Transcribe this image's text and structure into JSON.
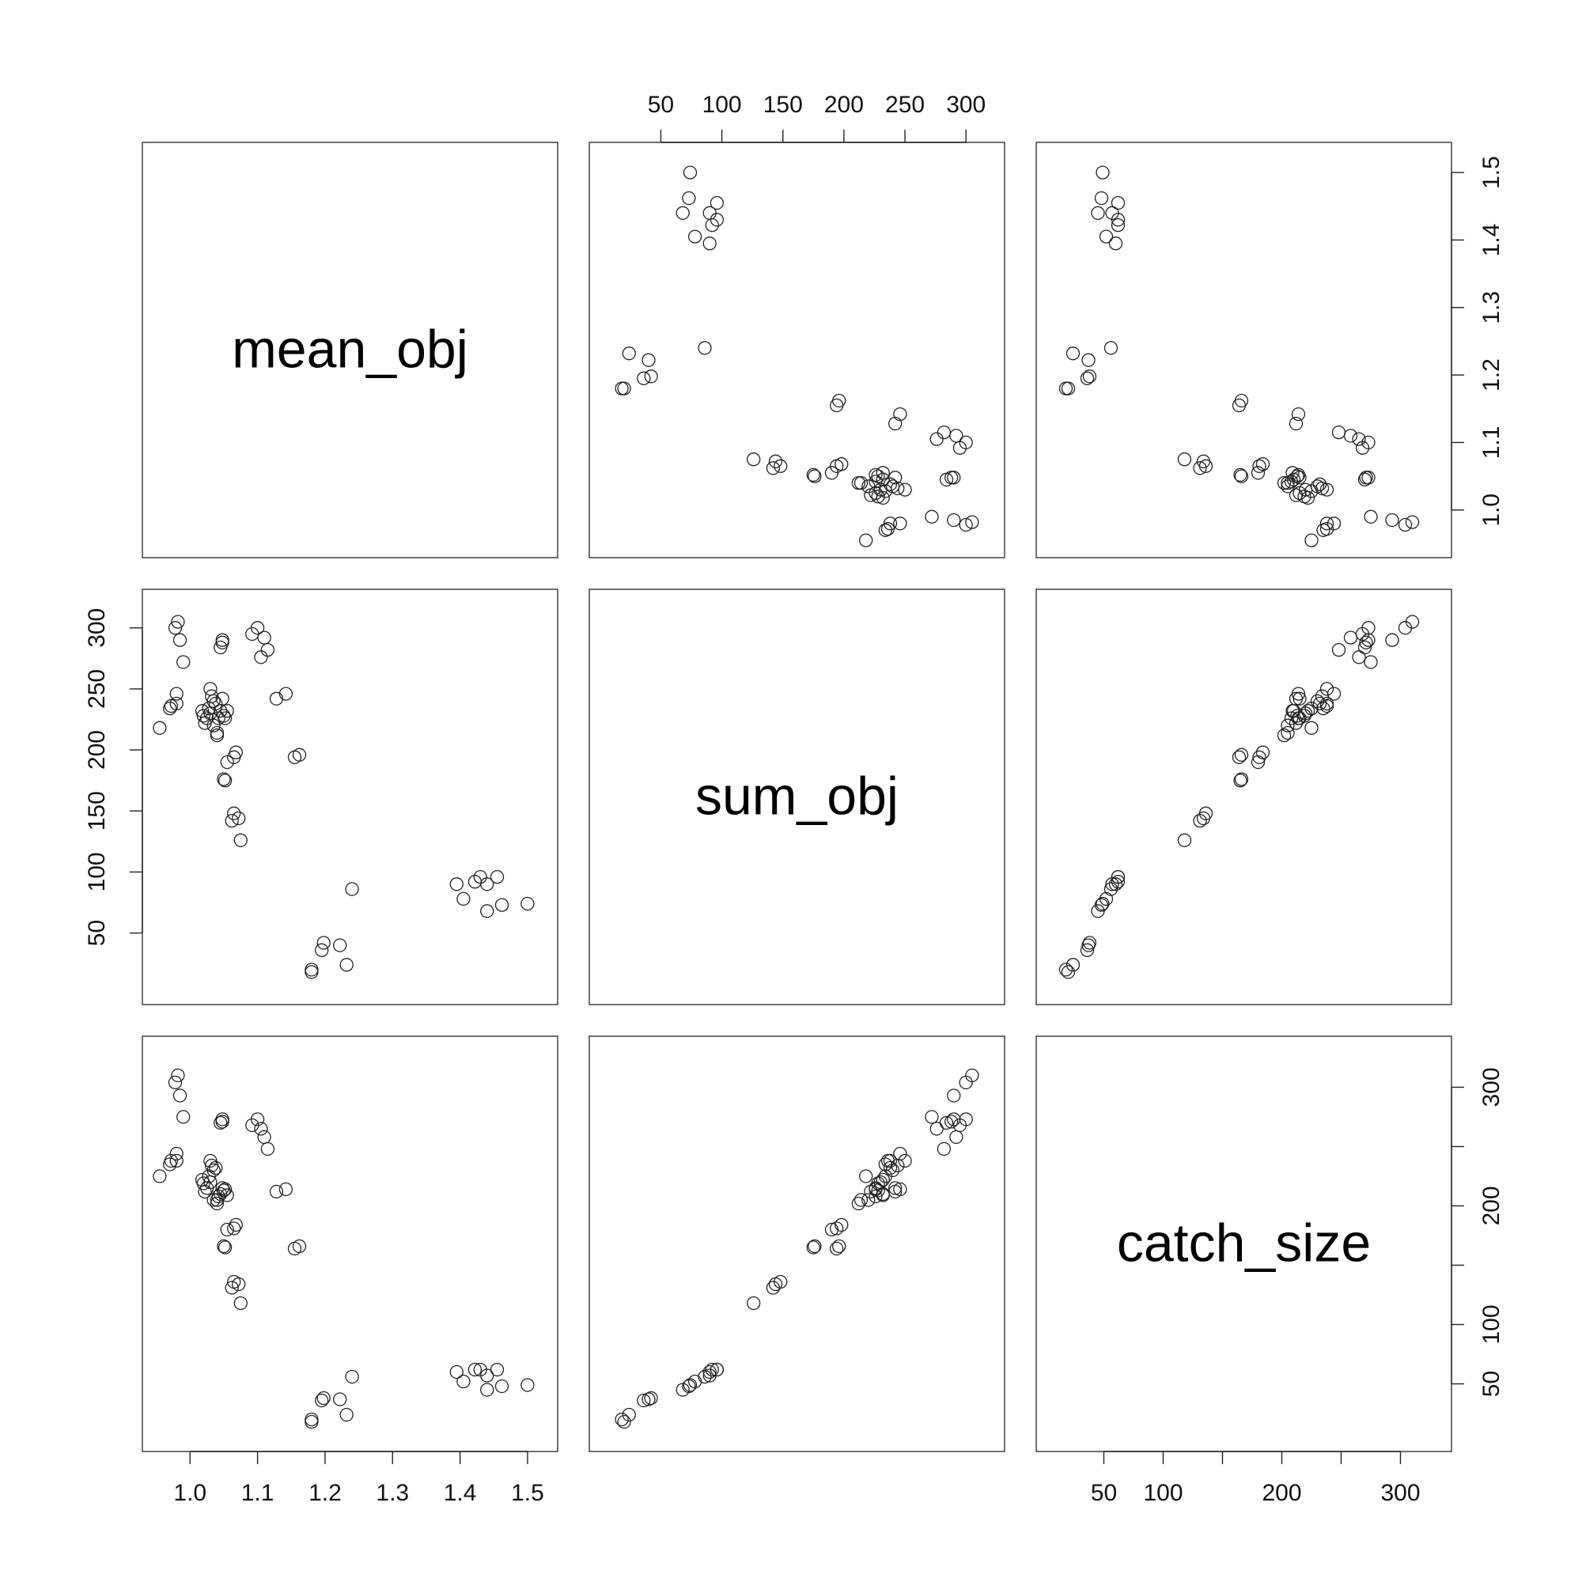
{
  "chart_data": {
    "type": "scatter",
    "kind": "pairs-matrix",
    "variables": [
      {
        "id": "mean_obj",
        "label": "mean_obj",
        "range": [
          0.954,
          1.52
        ],
        "ticks": [
          1.0,
          1.1,
          1.2,
          1.3,
          1.4,
          1.5
        ],
        "tick_labels": [
          "1.0",
          "1.1",
          "1.2",
          "1.3",
          "1.4",
          "1.5"
        ]
      },
      {
        "id": "sum_obj",
        "label": "sum_obj",
        "range": [
          5,
          318
        ],
        "ticks": [
          50,
          100,
          150,
          200,
          250,
          300
        ],
        "tick_labels": [
          "50",
          "100",
          "150",
          "200",
          "250",
          "300"
        ]
      },
      {
        "id": "catch_size",
        "label": "catch_size",
        "range": [
          7,
          329
        ],
        "ticks": [
          50,
          100,
          150,
          200,
          250,
          300
        ],
        "tick_labels": [
          "50",
          "100",
          "",
          "200",
          "",
          "300"
        ]
      }
    ],
    "mean_obj": [
      0.955,
      0.97,
      0.972,
      0.98,
      0.982,
      0.978,
      0.98,
      0.985,
      0.99,
      1.02,
      1.018,
      1.022,
      1.025,
      1.03,
      1.028,
      1.032,
      1.035,
      1.03,
      1.038,
      1.04,
      1.035,
      1.042,
      1.045,
      1.04,
      1.048,
      1.05,
      1.052,
      1.055,
      1.045,
      1.048,
      1.052,
      1.05,
      1.055,
      1.065,
      1.068,
      1.072,
      1.062,
      1.065,
      1.075,
      1.048,
      1.092,
      1.1,
      1.11,
      1.105,
      1.115,
      1.128,
      1.142,
      1.155,
      1.162,
      1.18,
      1.18,
      1.195,
      1.198,
      1.222,
      1.232,
      1.24,
      1.395,
      1.405,
      1.422,
      1.43,
      1.44,
      1.44,
      1.455,
      1.462,
      1.5
    ],
    "sum_obj": [
      218,
      234,
      236,
      238,
      305,
      300,
      246,
      290,
      272,
      228,
      232,
      222,
      226,
      230,
      234,
      244,
      240,
      250,
      238,
      212,
      220,
      226,
      232,
      214,
      242,
      228,
      226,
      232,
      284,
      290,
      175,
      176,
      190,
      194,
      198,
      144,
      142,
      148,
      126,
      288,
      295,
      300,
      292,
      276,
      282,
      242,
      246,
      194,
      196,
      18,
      20,
      36,
      42,
      40,
      24,
      86,
      90,
      78,
      92,
      96,
      90,
      68,
      96,
      73,
      74
    ],
    "catch_size": [
      225,
      235,
      238,
      238,
      310,
      304,
      244,
      293,
      275,
      219,
      222,
      212,
      215,
      220,
      225,
      234,
      230,
      238,
      232,
      202,
      205,
      208,
      210,
      205,
      215,
      213,
      214,
      209,
      270,
      273,
      165,
      166,
      180,
      181,
      184,
      134,
      131,
      136,
      118,
      271,
      268,
      273,
      258,
      265,
      248,
      212,
      214,
      164,
      166,
      20,
      18,
      36,
      38,
      37,
      24,
      56,
      60,
      52,
      62,
      62,
      57,
      45,
      62,
      48,
      49
    ]
  }
}
